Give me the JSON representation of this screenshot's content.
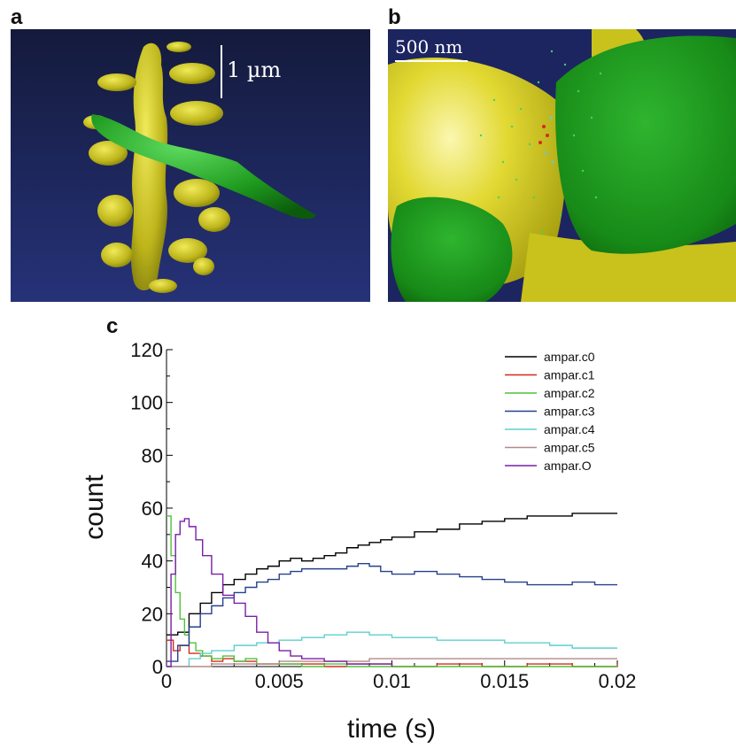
{
  "panels": {
    "a": {
      "letter": "a",
      "scale_label": "1 µm"
    },
    "b": {
      "letter": "b",
      "scale_label": "500 nm"
    },
    "c": {
      "letter": "c"
    }
  },
  "colors": {
    "background_blue": "#1f2a6b",
    "spine_yellow": "#c8c21a",
    "axon_green": "#1e8a1e"
  },
  "chart_data": {
    "type": "line",
    "xlabel": "time (s)",
    "ylabel": "count",
    "xlim": [
      0,
      0.02
    ],
    "ylim": [
      0,
      120
    ],
    "xticks": [
      "0",
      "0.005",
      "0.01",
      "0.015",
      "0.02"
    ],
    "yticks": [
      "0",
      "20",
      "40",
      "60",
      "80",
      "100",
      "120"
    ],
    "legend_position": "top-right",
    "series": [
      {
        "name": "ampar.c0",
        "color": "#000000",
        "x": [
          0,
          0.0005,
          0.001,
          0.0015,
          0.002,
          0.0025,
          0.003,
          0.0035,
          0.004,
          0.0045,
          0.005,
          0.0055,
          0.006,
          0.0065,
          0.007,
          0.0075,
          0.008,
          0.0085,
          0.009,
          0.0095,
          0.01,
          0.011,
          0.012,
          0.013,
          0.014,
          0.015,
          0.016,
          0.017,
          0.018,
          0.019,
          0.02
        ],
        "y": [
          12,
          13,
          20,
          24,
          28,
          31,
          33,
          35,
          37,
          38,
          40,
          41,
          40,
          41,
          42,
          43,
          45,
          46,
          47,
          48,
          49,
          51,
          52,
          54,
          55,
          56,
          57,
          57,
          58,
          58,
          58
        ]
      },
      {
        "name": "ampar.c1",
        "color": "#d42a1e",
        "x": [
          0,
          0.0003,
          0.0006,
          0.001,
          0.0015,
          0.002,
          0.0025,
          0.003,
          0.004,
          0.005,
          0.006,
          0.007,
          0.008,
          0.01,
          0.012,
          0.014,
          0.016,
          0.018,
          0.02
        ],
        "y": [
          10,
          6,
          8,
          5,
          4,
          2,
          3,
          2,
          1,
          1,
          1,
          0,
          1,
          0,
          1,
          0,
          1,
          0,
          1
        ]
      },
      {
        "name": "ampar.c2",
        "color": "#4fc23a",
        "x": [
          0,
          0.0002,
          0.0004,
          0.0006,
          0.0008,
          0.001,
          0.0013,
          0.0016,
          0.002,
          0.0025,
          0.003,
          0.0035,
          0.004,
          0.005,
          0.006,
          0.007,
          0.008,
          0.02
        ],
        "y": [
          57,
          42,
          28,
          18,
          12,
          9,
          6,
          4,
          3,
          4,
          2,
          3,
          1,
          1,
          0,
          1,
          0,
          0
        ]
      },
      {
        "name": "ampar.c3",
        "color": "#26408f",
        "x": [
          0,
          0.0005,
          0.001,
          0.0015,
          0.002,
          0.0025,
          0.003,
          0.0035,
          0.004,
          0.0045,
          0.005,
          0.0055,
          0.006,
          0.007,
          0.008,
          0.0085,
          0.009,
          0.0095,
          0.01,
          0.011,
          0.012,
          0.013,
          0.014,
          0.015,
          0.016,
          0.017,
          0.018,
          0.019,
          0.02
        ],
        "y": [
          2,
          8,
          15,
          20,
          23,
          26,
          28,
          30,
          32,
          33,
          35,
          36,
          37,
          37,
          38,
          39,
          38,
          36,
          35,
          36,
          35,
          34,
          33,
          32,
          31,
          31,
          32,
          31,
          31
        ]
      },
      {
        "name": "ampar.c4",
        "color": "#5fcfcf",
        "x": [
          0,
          0.001,
          0.0015,
          0.002,
          0.003,
          0.004,
          0.005,
          0.006,
          0.007,
          0.008,
          0.009,
          0.01,
          0.011,
          0.012,
          0.013,
          0.014,
          0.015,
          0.016,
          0.017,
          0.018,
          0.019,
          0.02
        ],
        "y": [
          0,
          3,
          5,
          6,
          8,
          9,
          10,
          11,
          12,
          13,
          12,
          11,
          11,
          10,
          10,
          10,
          9,
          9,
          8,
          7,
          7,
          7
        ]
      },
      {
        "name": "ampar.c5",
        "color": "#b38a8a",
        "x": [
          0,
          0.001,
          0.002,
          0.003,
          0.004,
          0.005,
          0.006,
          0.007,
          0.008,
          0.009,
          0.01,
          0.011,
          0.012,
          0.014,
          0.016,
          0.018,
          0.02
        ],
        "y": [
          0,
          0,
          1,
          1,
          1,
          2,
          2,
          2,
          2,
          3,
          3,
          3,
          3,
          3,
          3,
          3,
          3
        ]
      },
      {
        "name": "ampar.O",
        "color": "#7a1fa5",
        "x": [
          0,
          0.0002,
          0.0004,
          0.0006,
          0.0008,
          0.001,
          0.0013,
          0.0016,
          0.002,
          0.0025,
          0.003,
          0.0035,
          0.004,
          0.0045,
          0.005,
          0.0055,
          0.006,
          0.0065,
          0.007,
          0.0075,
          0.008,
          0.009,
          0.01
        ],
        "y": [
          0,
          35,
          50,
          55,
          56,
          53,
          48,
          42,
          35,
          27,
          24,
          19,
          13,
          9,
          6,
          4,
          3,
          3,
          2,
          2,
          1,
          1,
          0
        ]
      }
    ]
  }
}
